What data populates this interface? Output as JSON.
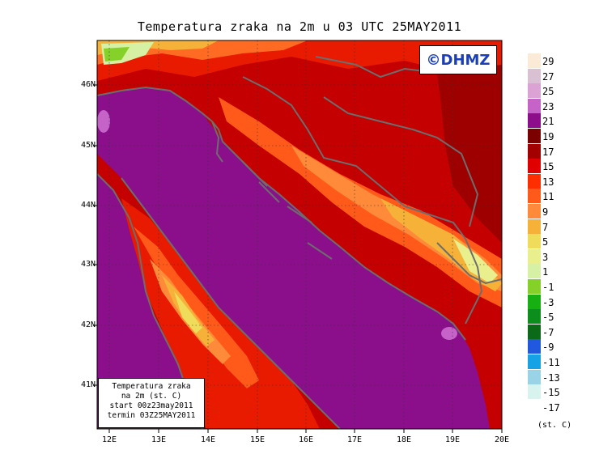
{
  "title": "Temperatura zraka na 2m u 03 UTC 25MAY2011",
  "logo": "©DHMZ",
  "info_box": {
    "line1": "Temperatura zraka",
    "line2": "na 2m (st. C)",
    "line3": "start 00z23may2011",
    "line4": "termin 03Z25MAY2011"
  },
  "lat_labels": [
    "46N",
    "45N",
    "44N",
    "43N",
    "42N",
    "41N"
  ],
  "lon_labels": [
    "12E",
    "13E",
    "14E",
    "15E",
    "16E",
    "17E",
    "18E",
    "19E",
    "20E"
  ],
  "legend": {
    "unit": "(st. C)",
    "labels": [
      "29",
      "27",
      "25",
      "23",
      "21",
      "19",
      "17",
      "15",
      "13",
      "11",
      "9",
      "7",
      "5",
      "3",
      "1",
      "-1",
      "-3",
      "-5",
      "-7",
      "-9",
      "-11",
      "-13",
      "-15",
      "-17"
    ],
    "colors": [
      "#fbead6",
      "#d9c0d2",
      "#dba2d4",
      "#c563c9",
      "#8d0e8b",
      "#7b0000",
      "#a30000",
      "#e10000",
      "#ff2e00",
      "#ff5a1a",
      "#ff8a3a",
      "#f6b238",
      "#efdc5a",
      "#e9ef8c",
      "#d6f0a4",
      "#86d02a",
      "#17b013",
      "#0c8e1c",
      "#0a6a18",
      "#2158e0",
      "#16a3e6",
      "#9ad2e6",
      "#d8f3ee"
    ]
  },
  "colors": {
    "sea": "#8b0f8b",
    "coast_line": "#6d6d6d"
  }
}
